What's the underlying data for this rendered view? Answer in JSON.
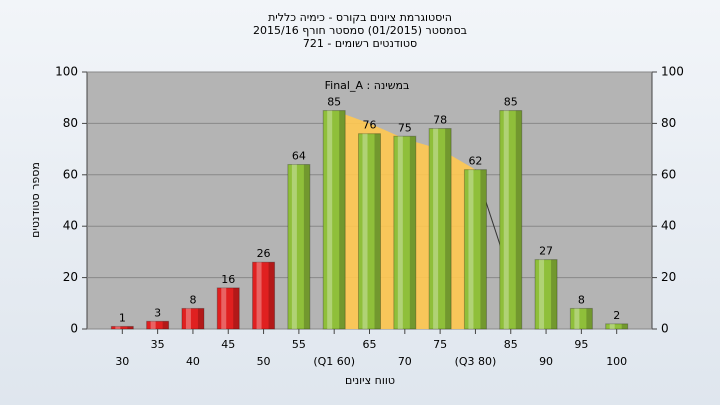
{
  "chart_data": {
    "type": "bar",
    "title": [
      "היסטוגרמת ציונים בקורס - כימיה כללית",
      "בסמסטר  (01/2015)  סמסטר חורף 2015/16",
      "סטודנטים רשומים - 721"
    ],
    "annotation": "במשינה : Final_A",
    "y_label": "מספר סטודנטים",
    "x_label": "טווח ציונים",
    "categories": [
      "30",
      "35",
      "40",
      "45",
      "50",
      "55",
      "(Q1 60)",
      "65",
      "70",
      "75",
      "(Q3 80)",
      "85",
      "90",
      "95",
      "100"
    ],
    "values": [
      1,
      3,
      8,
      16,
      26,
      64,
      85,
      76,
      75,
      78,
      62,
      85,
      27,
      8,
      2
    ],
    "colors": [
      "#e02020",
      "#e02020",
      "#e02020",
      "#e02020",
      "#e02020",
      "#8fbf3a",
      "#8fbf3a",
      "#8fbf3a",
      "#8fbf3a",
      "#8fbf3a",
      "#8fbf3a",
      "#8fbf3a",
      "#8fbf3a",
      "#8fbf3a",
      "#8fbf3a"
    ],
    "area": {
      "color": "#ffc850",
      "values": [
        null,
        null,
        null,
        null,
        null,
        null,
        85,
        80,
        74,
        70,
        62,
        null,
        null,
        null,
        null
      ]
    },
    "line": {
      "color": "#333333",
      "values": [
        null,
        null,
        null,
        null,
        null,
        null,
        null,
        null,
        null,
        null,
        62,
        20,
        null,
        null,
        null
      ]
    },
    "ylim": [
      0,
      100
    ],
    "yticks": [
      0,
      20,
      40,
      60,
      80,
      100
    ],
    "grid": true
  }
}
